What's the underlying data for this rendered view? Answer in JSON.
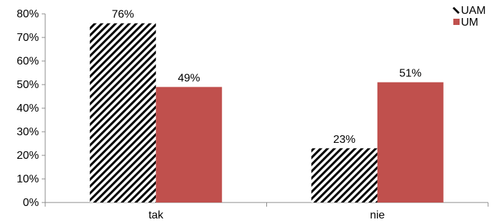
{
  "chart_data": {
    "type": "bar",
    "categories": [
      "tak",
      "nie"
    ],
    "series": [
      {
        "name": "UAM",
        "values": [
          76,
          23
        ],
        "fill": "hatch",
        "color": "#000000"
      },
      {
        "name": "UM",
        "values": [
          49,
          51
        ],
        "fill": "solid",
        "color": "#c0504d"
      }
    ],
    "data_labels": [
      [
        "76%",
        "23%"
      ],
      [
        "49%",
        "51%"
      ]
    ],
    "y_ticks": [
      "0%",
      "10%",
      "20%",
      "30%",
      "40%",
      "50%",
      "60%",
      "70%",
      "80%"
    ],
    "ylim": [
      0,
      80
    ],
    "title": "",
    "xlabel": "",
    "ylabel": "",
    "grid": false,
    "legend_position": "top-right"
  }
}
